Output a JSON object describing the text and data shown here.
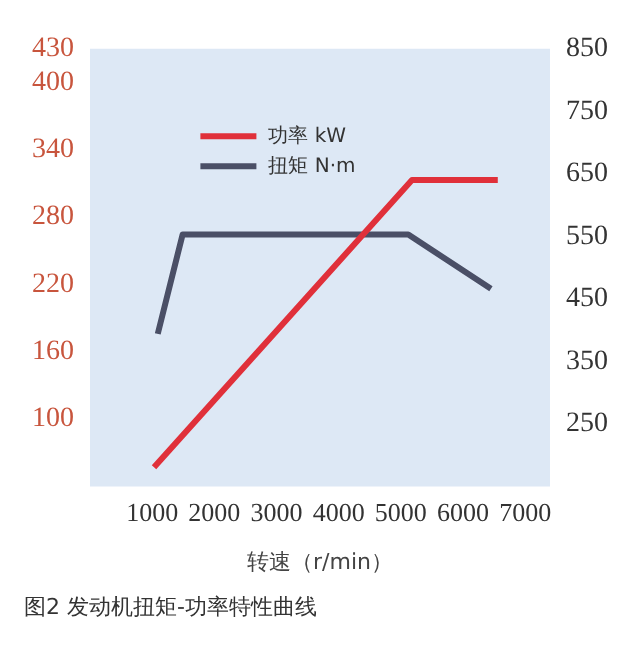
{
  "chart_data": {
    "type": "line",
    "xlabel": "转速（r/min）",
    "annotations": [
      "图2 发动机扭矩-功率特性曲线"
    ],
    "xlim": [
      0,
      7400
    ],
    "xticks": [
      1000,
      2000,
      3000,
      4000,
      5000,
      6000,
      7000
    ],
    "ylim": [
      40,
      430
    ],
    "yticks": [
      100,
      160,
      220,
      280,
      340,
      400,
      430
    ],
    "y2lim": [
      150,
      850
    ],
    "y2ticks": [
      250,
      350,
      450,
      550,
      650,
      750,
      850
    ],
    "series": [
      {
        "name": "功率 kW",
        "color": "#e0303a",
        "x": [
          1030,
          5180,
          6560
        ],
        "values": [
          57,
          313,
          313
        ]
      },
      {
        "name": "扭矩 N·m",
        "color": "#4a4f66",
        "axis": "y2",
        "x": [
          1090,
          1490,
          5120,
          6450
        ],
        "values": [
          394,
          553,
          553,
          466
        ]
      }
    ],
    "legend": "top",
    "grid": false,
    "marker": "none",
    "line_style": "solid"
  }
}
